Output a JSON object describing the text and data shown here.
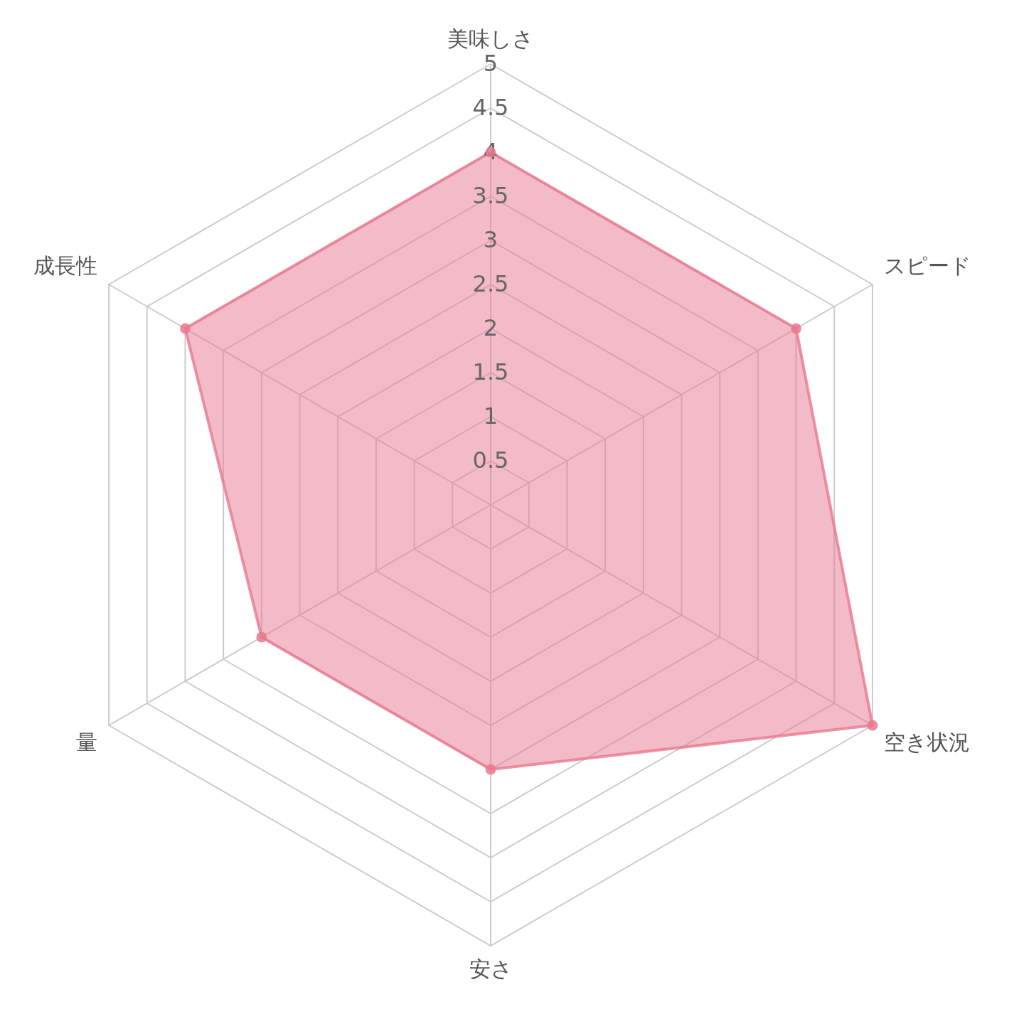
{
  "chart_data": {
    "type": "radar",
    "categories": [
      "美味しさ",
      "スピード",
      "空き状況",
      "安さ",
      "量",
      "成長性"
    ],
    "series": [
      {
        "color": "#e8788f",
        "values": [
          4,
          4,
          5,
          3,
          3,
          4
        ]
      }
    ],
    "ylim": [
      0,
      5
    ],
    "yticks": [
      0.5,
      1,
      1.5,
      2,
      2.5,
      3,
      3.5,
      4,
      4.5,
      5
    ],
    "grid": true,
    "marker": "circle"
  }
}
